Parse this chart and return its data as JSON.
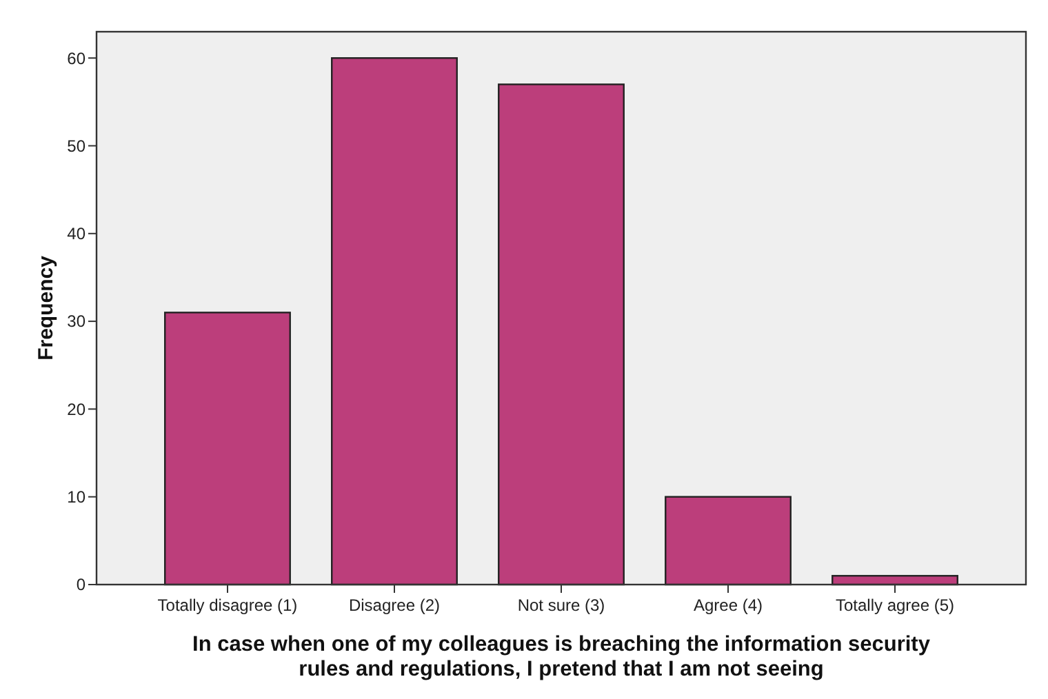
{
  "chart_data": {
    "type": "bar",
    "xlabel": "In case when one of my colleagues is breaching the information security\nrules and regulations, I pretend that I am not seeing",
    "ylabel": "Frequency",
    "categories": [
      "Totally disagree (1)",
      "Disagree (2)",
      "Not sure (3)",
      "Agree (4)",
      "Totally agree (5)"
    ],
    "values": [
      31,
      60,
      57,
      10,
      1
    ],
    "color": "#bc3e7b",
    "ylim": [
      0,
      63
    ],
    "yticks": [
      0,
      10,
      20,
      30,
      40,
      50,
      60
    ],
    "grid": false
  }
}
